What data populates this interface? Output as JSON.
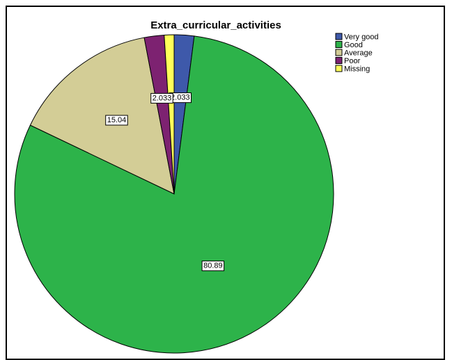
{
  "chart_data": {
    "type": "pie",
    "title": "Extra_curricular_activities",
    "slices": [
      {
        "label": "Very good",
        "value": 2.033,
        "color": "#3e59aa",
        "data_label": "2.033"
      },
      {
        "label": "Good",
        "value": 80.89,
        "color": "#2db34a",
        "data_label": "80.89"
      },
      {
        "label": "Average",
        "value": 15.04,
        "color": "#d3cd96",
        "data_label": "15.04"
      },
      {
        "label": "Poor",
        "value": 2.033,
        "color": "#7d2271",
        "data_label": "2.033"
      },
      {
        "label": "Missing",
        "value": 1.0,
        "color": "#ffff5a",
        "data_label": ""
      }
    ],
    "legend_position": "top-right",
    "start": "12 o'clock",
    "direction": "clockwise"
  }
}
